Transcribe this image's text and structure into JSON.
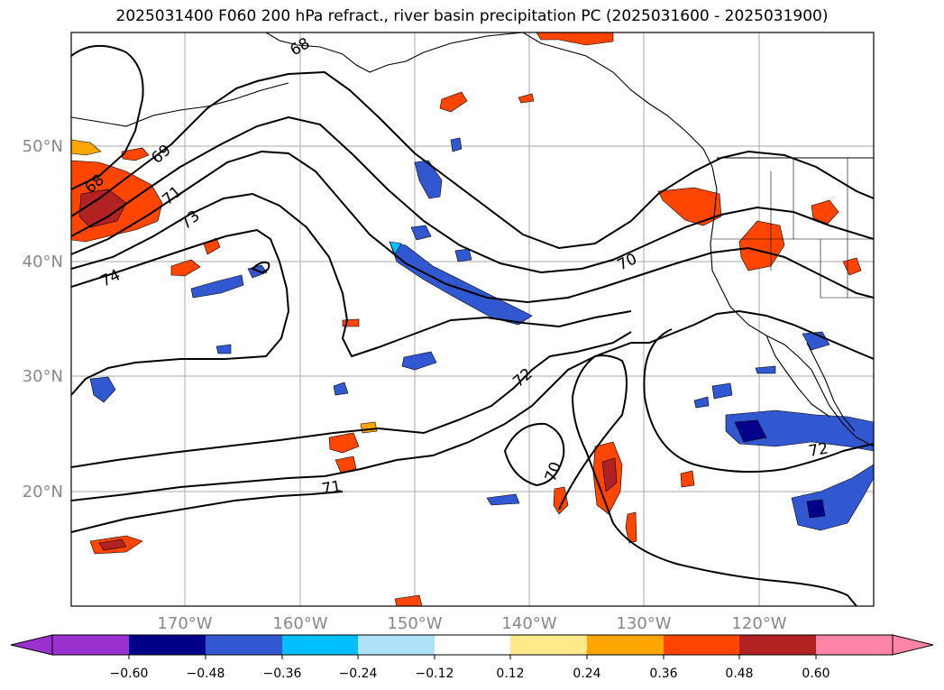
{
  "title": "2025031400 F060 200 hPa refract., river basin precipitation PC (2025031600 - 2025031900)",
  "map": {
    "lat_labels": [
      "50°N",
      "40°N",
      "30°N",
      "20°N"
    ],
    "lon_labels": [
      "170°W",
      "160°W",
      "150°W",
      "140°W",
      "130°W",
      "120°W"
    ],
    "contour_labels": [
      "68",
      "69",
      "71",
      "73",
      "74",
      "70",
      "72",
      "70",
      "71",
      "72"
    ]
  },
  "colorbar": {
    "ticks": [
      "−0.60",
      "−0.48",
      "−0.36",
      "−0.24",
      "−0.12",
      "0.12",
      "0.24",
      "0.36",
      "0.48",
      "0.60"
    ],
    "colors": [
      "#9b30d0",
      "#00008b",
      "#3158d0",
      "#00bfff",
      "#aee2f8",
      "#ffffff",
      "#ffe98a",
      "#ffa500",
      "#ff4500",
      "#b22222",
      "#ff85a8"
    ]
  },
  "colors": {
    "positive_light": "#ffe98a",
    "positive_mid": "#ffa500",
    "positive_strong": "#ff4500",
    "positive_max": "#b22222",
    "negative_light": "#00bfff",
    "negative_mid": "#3158d0",
    "negative_max": "#00008b",
    "grid": "#aaaaaa",
    "axis_label": "#888888"
  }
}
